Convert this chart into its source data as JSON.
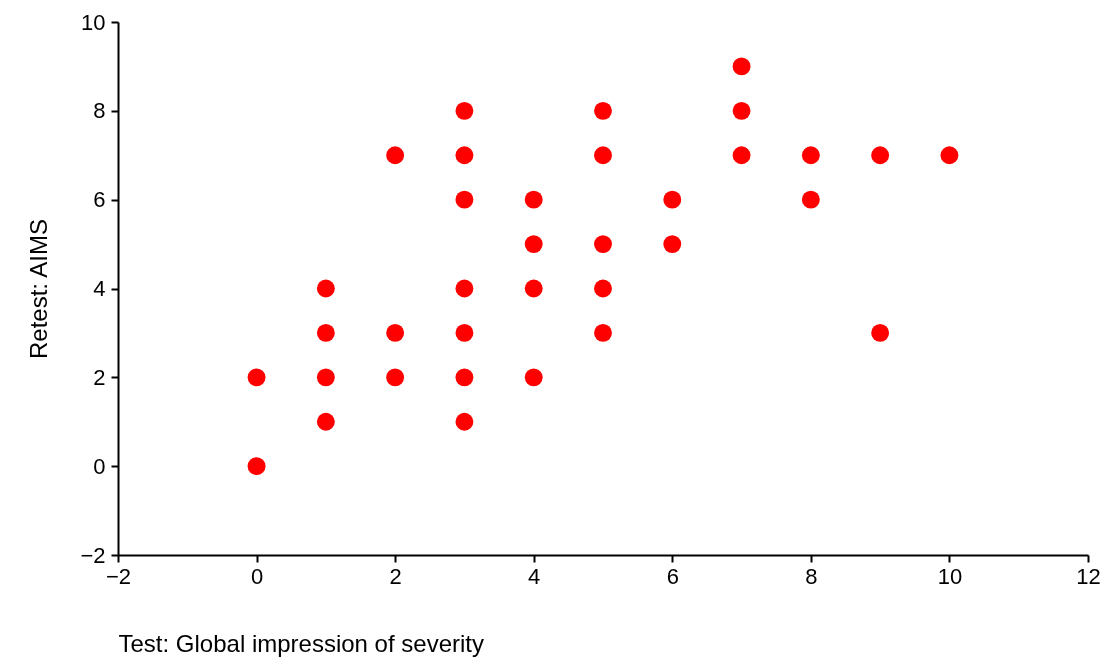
{
  "chart_data": {
    "type": "scatter",
    "xlabel": "Test: Global impression of severity",
    "ylabel": "Retest: AIMS",
    "x": [
      0,
      0,
      1,
      1,
      1,
      1,
      2,
      2,
      2,
      3,
      3,
      3,
      3,
      3,
      3,
      3,
      4,
      4,
      4,
      4,
      5,
      5,
      5,
      5,
      5,
      6,
      6,
      7,
      7,
      7,
      8,
      8,
      9,
      9,
      10
    ],
    "values": [
      2,
      0,
      4,
      3,
      2,
      1,
      7,
      3,
      2,
      8,
      7,
      6,
      4,
      3,
      2,
      1,
      6,
      5,
      4,
      2,
      8,
      7,
      5,
      4,
      3,
      6,
      5,
      9,
      8,
      7,
      7,
      6,
      7,
      3,
      7
    ],
    "color": "#ff0000",
    "marker": "circle",
    "xlim": [
      -2,
      12
    ],
    "ylim": [
      -2,
      10
    ],
    "xticks": [
      -2,
      0,
      2,
      4,
      6,
      8,
      10,
      12
    ],
    "yticks": [
      -2,
      0,
      2,
      4,
      6,
      8,
      10
    ]
  }
}
